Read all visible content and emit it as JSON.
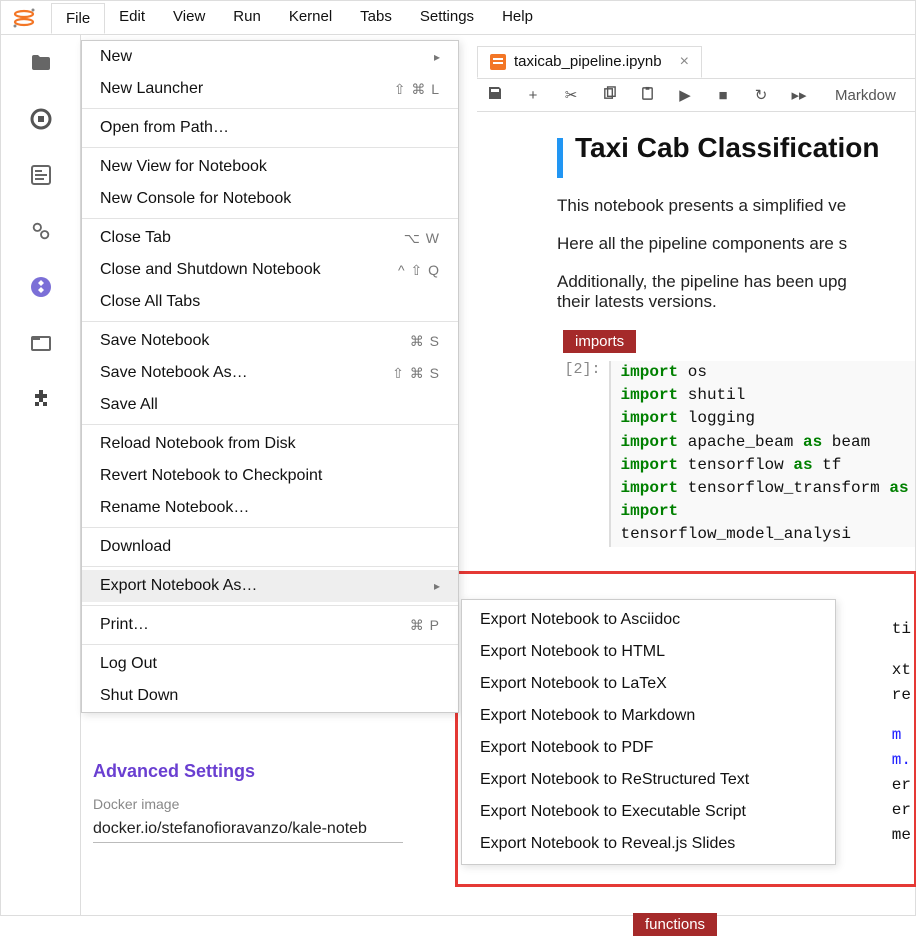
{
  "menubar": {
    "items": [
      "File",
      "Edit",
      "View",
      "Run",
      "Kernel",
      "Tabs",
      "Settings",
      "Help"
    ],
    "active_index": 0
  },
  "sidebar_icons": [
    "folder-icon",
    "running-icon",
    "commands-icon",
    "settings-icon",
    "kubeflow-icon",
    "tabs-icon",
    "extension-icon"
  ],
  "file_menu": {
    "groups": [
      [
        {
          "label": "New",
          "shortcut": "",
          "submenu": true
        },
        {
          "label": "New Launcher",
          "shortcut": "⇧ ⌘ L"
        }
      ],
      [
        {
          "label": "Open from Path…",
          "shortcut": ""
        }
      ],
      [
        {
          "label": "New View for Notebook",
          "shortcut": ""
        },
        {
          "label": "New Console for Notebook",
          "shortcut": ""
        }
      ],
      [
        {
          "label": "Close Tab",
          "shortcut": "⌥ W"
        },
        {
          "label": "Close and Shutdown Notebook",
          "shortcut": "^ ⇧ Q"
        },
        {
          "label": "Close All Tabs",
          "shortcut": ""
        }
      ],
      [
        {
          "label": "Save Notebook",
          "shortcut": "⌘ S"
        },
        {
          "label": "Save Notebook As…",
          "shortcut": "⇧ ⌘ S"
        },
        {
          "label": "Save All",
          "shortcut": ""
        }
      ],
      [
        {
          "label": "Reload Notebook from Disk",
          "shortcut": ""
        },
        {
          "label": "Revert Notebook to Checkpoint",
          "shortcut": ""
        },
        {
          "label": "Rename Notebook…",
          "shortcut": ""
        }
      ],
      [
        {
          "label": "Download",
          "shortcut": ""
        }
      ],
      [
        {
          "label": "Export Notebook As…",
          "shortcut": "",
          "submenu": true,
          "hover": true
        }
      ],
      [
        {
          "label": "Print…",
          "shortcut": "⌘ P"
        }
      ],
      [
        {
          "label": "Log Out",
          "shortcut": ""
        },
        {
          "label": "Shut Down",
          "shortcut": ""
        }
      ]
    ]
  },
  "export_submenu": {
    "items": [
      "Export Notebook to Asciidoc",
      "Export Notebook to HTML",
      "Export Notebook to LaTeX",
      "Export Notebook to Markdown",
      "Export Notebook to PDF",
      "Export Notebook to ReStructured Text",
      "Export Notebook to Executable Script",
      "Export Notebook to Reveal.js Slides"
    ]
  },
  "tab": {
    "filename": "taxicab_pipeline.ipynb"
  },
  "toolbar": {
    "celltype": "Markdow"
  },
  "notebook": {
    "heading": "Taxi Cab Classification",
    "p1": "This notebook presents a simplified ve",
    "p2": "Here all the pipeline components are s",
    "p3": "Additionally, the pipeline has been upg",
    "p3b": "their latests versions.",
    "tag_imports": "imports",
    "tag_functions": "functions",
    "prompt": "[2]:",
    "code_lines": [
      {
        "pre": "import",
        "post": " os"
      },
      {
        "pre": "import",
        "post": " shutil"
      },
      {
        "pre": "import",
        "post": " logging"
      },
      {
        "pre": "import",
        "post": " apache_beam ",
        "kw2": "as",
        "post2": " beam"
      },
      {
        "pre": "import",
        "post": " tensorflow ",
        "kw2": "as",
        "post2": " tf"
      },
      {
        "pre": "import",
        "post": " tensorflow_transform ",
        "kw2": "as",
        "post2": ""
      },
      {
        "pre": "import",
        "post": " tensorflow_model_analysi"
      }
    ],
    "tail_snips": [
      "ti",
      "xt",
      "re",
      "m",
      "m.",
      "er",
      "er",
      "me"
    ]
  },
  "advanced": {
    "title": "Advanced Settings",
    "label": "Docker image",
    "value": "docker.io/stefanofioravanzo/kale-noteb"
  },
  "colors": {
    "accent_blue": "#2196f3",
    "tag_bg": "#a52a2a",
    "purple": "#6a3fd1",
    "highlight": "#e53935",
    "code_kw": "#008000"
  }
}
